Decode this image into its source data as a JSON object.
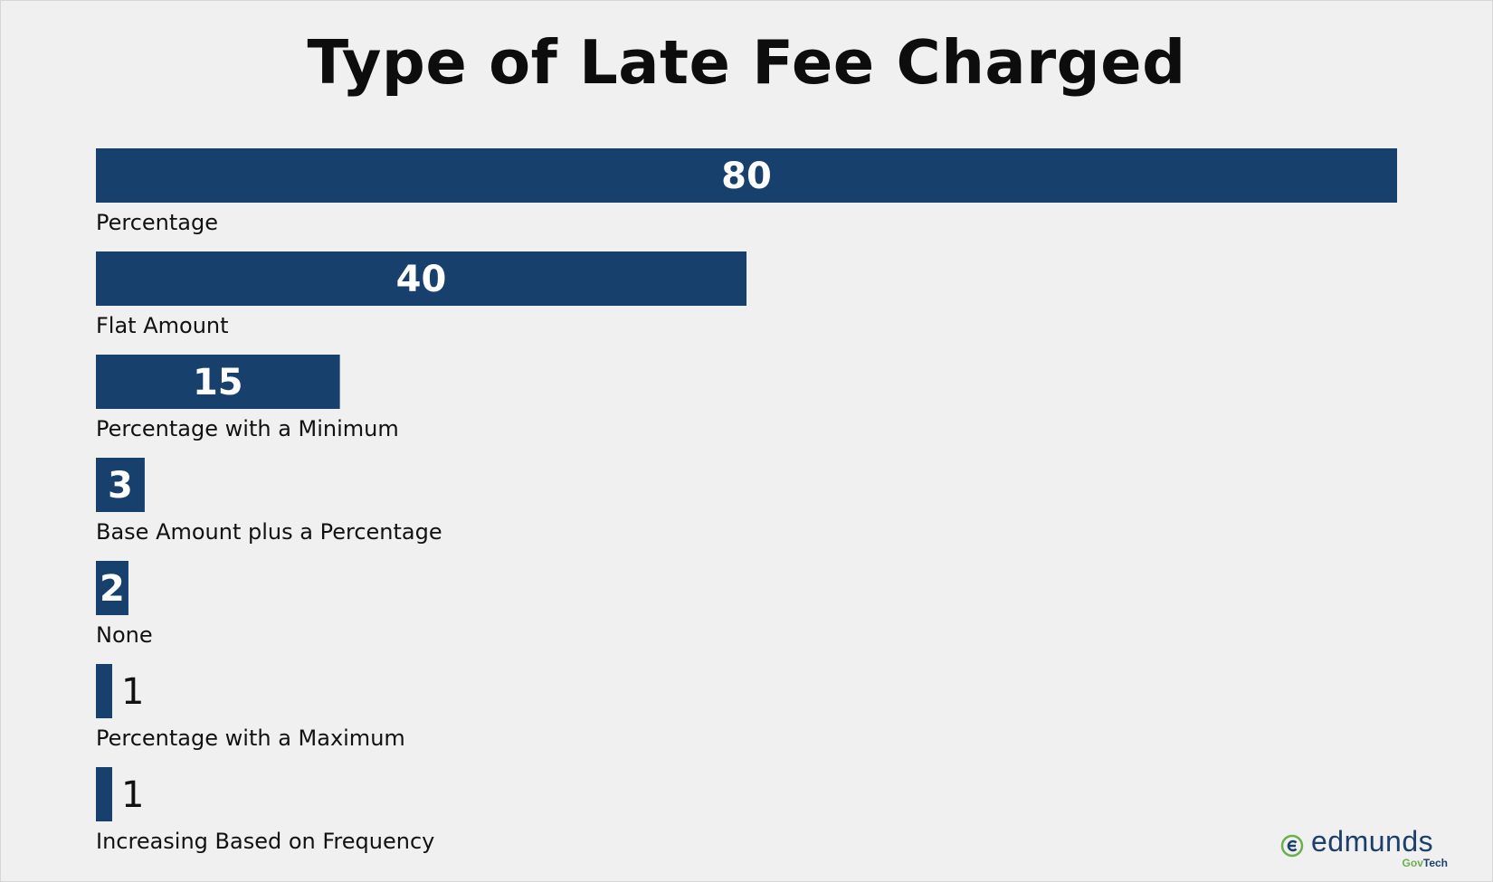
{
  "chart_data": {
    "type": "bar",
    "orientation": "horizontal",
    "title": "Type of Late Fee Charged",
    "categories": [
      "Percentage",
      "Flat Amount",
      "Percentage with a Minimum",
      "Base Amount plus a Percentage",
      "None",
      "Percentage with a Maximum",
      "Increasing Based on Frequency"
    ],
    "values": [
      80,
      40,
      15,
      3,
      2,
      1,
      1
    ],
    "xlim": [
      0,
      80
    ],
    "grid": false,
    "bar_color": "#17406d",
    "background_color": "#f0f0f0"
  },
  "brand": {
    "name": "edmunds",
    "sub_prefix": "Gov",
    "sub_suffix": "Tech",
    "primary_color": "#1c3f6b",
    "accent_color": "#6ab04c"
  }
}
